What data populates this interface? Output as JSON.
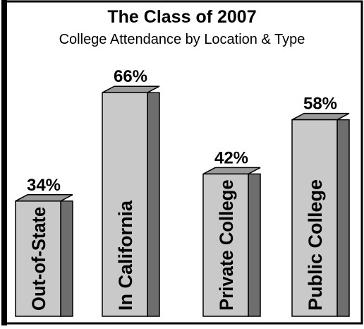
{
  "chart_data": {
    "type": "bar3d",
    "title": "The Class of 2007",
    "subtitle": "College Attendance by Location & Type",
    "categories": [
      "Out-of-State",
      "In California",
      "Private College",
      "Public College"
    ],
    "values": [
      34,
      66,
      42,
      58
    ],
    "value_labels": [
      "34%",
      "66%",
      "42%",
      "58%"
    ],
    "color": "#c9c9c9",
    "side_color": "#6e6e6e"
  }
}
